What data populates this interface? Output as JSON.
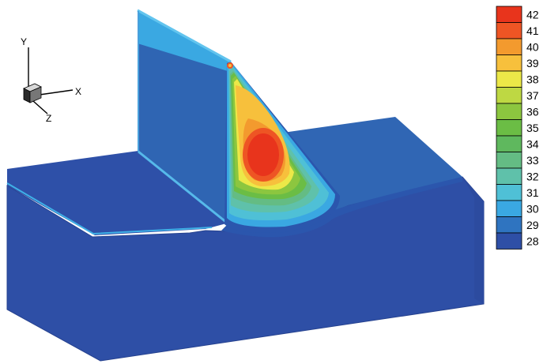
{
  "axes_triad": {
    "x_label": "X",
    "y_label": "Y",
    "z_label": "Z"
  },
  "legend": {
    "levels": [
      {
        "value": "42",
        "color": "#e8341c"
      },
      {
        "value": "41",
        "color": "#ee5524"
      },
      {
        "value": "40",
        "color": "#f39a2e"
      },
      {
        "value": "39",
        "color": "#f7c03c"
      },
      {
        "value": "38",
        "color": "#ece848"
      },
      {
        "value": "37",
        "color": "#bed843"
      },
      {
        "value": "36",
        "color": "#8cc63f"
      },
      {
        "value": "35",
        "color": "#6bbd45"
      },
      {
        "value": "34",
        "color": "#5fb85e"
      },
      {
        "value": "33",
        "color": "#64bc84"
      },
      {
        "value": "32",
        "color": "#5fc1aa"
      },
      {
        "value": "31",
        "color": "#4fc0d6"
      },
      {
        "value": "30",
        "color": "#3aa8e2"
      },
      {
        "value": "29",
        "color": "#2f74c0"
      },
      {
        "value": "28",
        "color": "#2e4fa6"
      }
    ]
  },
  "colors": {
    "base_top": "#2e4fa6",
    "base_front": "#2e4fa6",
    "base_right": "#2e4fa6",
    "raised_top": "#3066b4",
    "wall_face": "#2f65b3",
    "wall_top_band": "#3aa8e2",
    "wall_edge": "#62c4ee",
    "outline": "#000000"
  }
}
